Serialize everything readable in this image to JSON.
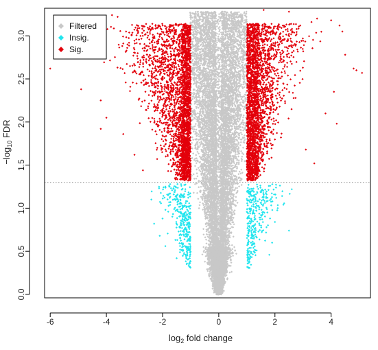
{
  "chart_data": {
    "type": "scatter",
    "title": "",
    "xlabel_parts": {
      "base": "log",
      "sub": "2",
      "rest": " fold change"
    },
    "ylabel_parts": {
      "base": "−log",
      "sub": "10",
      "rest": " FDR"
    },
    "xlim": [
      -6.2,
      5.4
    ],
    "ylim": [
      -0.04,
      3.32
    ],
    "x_ticks": [
      -6,
      -4,
      -2,
      0,
      2,
      4
    ],
    "x_tick_labels": [
      "-6",
      "-4",
      "-2",
      "0",
      "2",
      "4"
    ],
    "y_ticks": [
      0.0,
      0.5,
      1.0,
      1.5,
      2.0,
      2.5,
      3.0
    ],
    "y_tick_labels": [
      "0.0",
      "0.5",
      "1.0",
      "1.5",
      "2.0",
      "2.5",
      "3.0"
    ],
    "threshold": {
      "y": 1.3,
      "style": "dotted",
      "color": "#888888"
    },
    "fc_cutoff": 1,
    "legend": {
      "placement": "top-left",
      "entries": [
        {
          "label": "Filtered",
          "color": "#c8c8c8",
          "marker": "diamond"
        },
        {
          "label": "Insig.",
          "color": "#22e5ee",
          "marker": "diamond"
        },
        {
          "label": "Sig.",
          "color": "#e3000b",
          "marker": "diamond"
        }
      ]
    },
    "series": [
      {
        "name": "Sig.",
        "color": "#e3000b",
        "points": [
          [
            -6.0,
            2.62
          ],
          [
            -4.9,
            2.38
          ],
          [
            -4.2,
            2.25
          ],
          [
            -4.2,
            1.92
          ],
          [
            -3.8,
            3.24
          ],
          [
            -3.6,
            3.22
          ],
          [
            -3.3,
            3.05
          ],
          [
            -2.9,
            3.12
          ],
          [
            -2.6,
            3.02
          ],
          [
            -4.0,
            2.05
          ],
          [
            4.0,
            3.18
          ],
          [
            4.3,
            3.12
          ],
          [
            4.4,
            3.05
          ],
          [
            4.5,
            2.78
          ],
          [
            4.8,
            2.62
          ],
          [
            5.1,
            2.57
          ],
          [
            4.9,
            2.6
          ],
          [
            4.2,
            1.98
          ],
          [
            3.8,
            2.1
          ],
          [
            4.1,
            2.35
          ],
          [
            3.5,
            3.2
          ],
          [
            3.3,
            3.16
          ],
          [
            2.9,
            3.12
          ],
          [
            2.5,
            3.28
          ],
          [
            1.6,
            3.3
          ],
          [
            -3.0,
            1.62
          ],
          [
            -3.4,
            1.86
          ],
          [
            3.1,
            1.68
          ],
          [
            3.4,
            1.52
          ],
          [
            -2.7,
            1.44
          ]
        ]
      },
      {
        "name": "Insig.",
        "color": "#22e5ee",
        "points": [
          [
            -2.3,
            0.82
          ],
          [
            -2.1,
            0.68
          ],
          [
            -1.9,
            0.56
          ],
          [
            -1.5,
            0.42
          ],
          [
            -1.9,
            1.25
          ],
          [
            -2.4,
            1.1
          ],
          [
            -1.8,
            0.96
          ],
          [
            -1.4,
            0.78
          ],
          [
            -1.6,
            1.16
          ],
          [
            -2.0,
            0.88
          ],
          [
            1.5,
            0.92
          ],
          [
            1.7,
            0.78
          ],
          [
            1.9,
            0.6
          ],
          [
            2.0,
            0.84
          ],
          [
            2.3,
            1.04
          ],
          [
            2.6,
            1.22
          ],
          [
            1.8,
            0.46
          ],
          [
            1.3,
            0.72
          ],
          [
            2.1,
            1.0
          ],
          [
            2.5,
            0.74
          ]
        ]
      },
      {
        "name": "Filtered",
        "color": "#c8c8c8",
        "points": [
          [
            0.0,
            0.02
          ],
          [
            0.0,
            0.1
          ],
          [
            -0.2,
            0.3
          ],
          [
            0.2,
            0.35
          ],
          [
            -0.3,
            0.7
          ],
          [
            0.3,
            0.75
          ],
          [
            -0.5,
            1.2
          ],
          [
            0.5,
            1.3
          ],
          [
            -0.7,
            2.0
          ],
          [
            0.7,
            2.1
          ],
          [
            -0.8,
            2.7
          ],
          [
            0.8,
            2.8
          ],
          [
            -0.9,
            3.1
          ],
          [
            0.9,
            3.15
          ],
          [
            -0.6,
            3.0
          ],
          [
            0.6,
            3.05
          ],
          [
            -0.1,
            3.2
          ],
          [
            0.1,
            3.25
          ],
          [
            -0.4,
            1.7
          ],
          [
            0.4,
            1.8
          ]
        ]
      }
    ]
  }
}
